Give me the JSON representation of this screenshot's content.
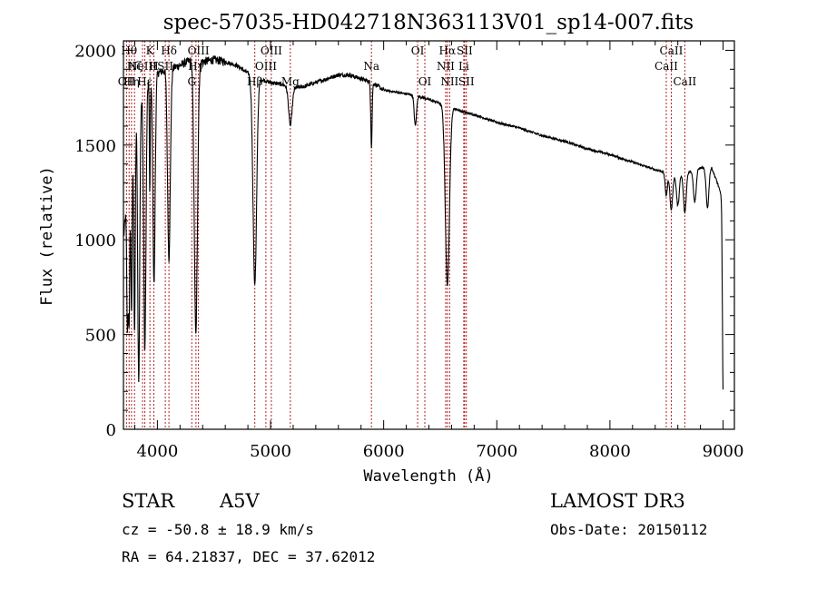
{
  "chart_data": {
    "type": "line",
    "title": "spec-57035-HD042718N363113V01_sp14-007.fits",
    "xlabel": "Wavelength (Å)",
    "ylabel": "Flux (relative)",
    "xlim": [
      3700,
      9100
    ],
    "ylim": [
      0,
      2050
    ],
    "x_ticks": [
      4000,
      5000,
      6000,
      7000,
      8000,
      9000
    ],
    "x_tick_labels": [
      "4000",
      "5000",
      "6000",
      "7000",
      "8000",
      "9000"
    ],
    "y_ticks": [
      0,
      500,
      1000,
      1500,
      2000
    ],
    "y_tick_labels": [
      "0",
      "500",
      "1000",
      "1500",
      "2000"
    ],
    "continuum": [
      [
        3700,
        1000
      ],
      [
        3800,
        1720
      ],
      [
        3900,
        1830
      ],
      [
        4000,
        1880
      ],
      [
        4100,
        1900
      ],
      [
        4200,
        1920
      ],
      [
        4300,
        1950
      ],
      [
        4400,
        1940
      ],
      [
        4500,
        1950
      ],
      [
        4600,
        1940
      ],
      [
        4700,
        1920
      ],
      [
        4800,
        1880
      ],
      [
        4900,
        1850
      ],
      [
        5000,
        1830
      ],
      [
        5100,
        1820
      ],
      [
        5200,
        1800
      ],
      [
        5300,
        1810
      ],
      [
        5400,
        1830
      ],
      [
        5500,
        1850
      ],
      [
        5600,
        1870
      ],
      [
        5700,
        1870
      ],
      [
        5800,
        1850
      ],
      [
        5900,
        1830
      ],
      [
        6000,
        1790
      ],
      [
        6100,
        1780
      ],
      [
        6200,
        1770
      ],
      [
        6300,
        1760
      ],
      [
        6400,
        1740
      ],
      [
        6500,
        1720
      ],
      [
        6600,
        1700
      ],
      [
        6700,
        1675
      ],
      [
        6800,
        1660
      ],
      [
        6900,
        1640
      ],
      [
        7000,
        1620
      ],
      [
        7200,
        1590
      ],
      [
        7400,
        1550
      ],
      [
        7600,
        1520
      ],
      [
        7800,
        1480
      ],
      [
        8000,
        1450
      ],
      [
        8200,
        1410
      ],
      [
        8400,
        1370
      ],
      [
        8600,
        1340
      ],
      [
        8800,
        1380
      ],
      [
        8900,
        1380
      ],
      [
        8950,
        1300
      ],
      [
        9000,
        1200
      ]
    ],
    "absorption_features": [
      {
        "center": 3735,
        "depth": 700,
        "width": 6
      },
      {
        "center": 3750,
        "depth": 800,
        "width": 6
      },
      {
        "center": 3771,
        "depth": 900,
        "width": 6
      },
      {
        "center": 3798,
        "depth": 1200,
        "width": 7
      },
      {
        "center": 3835,
        "depth": 1500,
        "width": 9
      },
      {
        "center": 3889,
        "depth": 1400,
        "width": 10
      },
      {
        "center": 3933,
        "depth": 600,
        "width": 4
      },
      {
        "center": 3970,
        "depth": 1100,
        "width": 10
      },
      {
        "center": 4102,
        "depth": 1000,
        "width": 12
      },
      {
        "center": 4340,
        "depth": 1450,
        "width": 14
      },
      {
        "center": 4861,
        "depth": 1100,
        "width": 16
      },
      {
        "center": 5175,
        "depth": 200,
        "width": 15
      },
      {
        "center": 5892,
        "depth": 340,
        "width": 6
      },
      {
        "center": 6280,
        "depth": 160,
        "width": 10
      },
      {
        "center": 6563,
        "depth": 950,
        "width": 18
      },
      {
        "center": 8498,
        "depth": 120,
        "width": 10
      },
      {
        "center": 8542,
        "depth": 190,
        "width": 12
      },
      {
        "center": 8600,
        "depth": 160,
        "width": 12
      },
      {
        "center": 8662,
        "depth": 210,
        "width": 12
      },
      {
        "center": 8750,
        "depth": 170,
        "width": 12
      },
      {
        "center": 8862,
        "depth": 210,
        "width": 12
      },
      {
        "center": 9000,
        "depth": 1000,
        "width": 6
      }
    ],
    "reference_lines": [
      {
        "wavelength": 3727,
        "label": "OII",
        "row": 3
      },
      {
        "wavelength": 3750,
        "label": "Hθ",
        "row": 1
      },
      {
        "wavelength": 3771,
        "label": "Hη",
        "row": 3
      },
      {
        "wavelength": 3798,
        "label": "Hζ",
        "row": 2
      },
      {
        "wavelength": 3869,
        "label": "NeIII",
        "row": 2
      },
      {
        "wavelength": 3889,
        "label": "Hε",
        "row": 3
      },
      {
        "wavelength": 3934,
        "label": "K",
        "row": 1
      },
      {
        "wavelength": 3969,
        "label": "H",
        "row": 2
      },
      {
        "wavelength": 4070,
        "label": "SII",
        "row": 2
      },
      {
        "wavelength": 4102,
        "label": "Hδ",
        "row": 1
      },
      {
        "wavelength": 4304,
        "label": "G",
        "row": 3
      },
      {
        "wavelength": 4341,
        "label": "Hγ",
        "row": 2
      },
      {
        "wavelength": 4363,
        "label": "OIII",
        "row": 1
      },
      {
        "wavelength": 4861,
        "label": "Hβ",
        "row": 3
      },
      {
        "wavelength": 4959,
        "label": "OIII",
        "row": 2
      },
      {
        "wavelength": 5007,
        "label": "OIII",
        "row": 1
      },
      {
        "wavelength": 5175,
        "label": "Mg",
        "row": 3
      },
      {
        "wavelength": 5892,
        "label": "Na",
        "row": 2
      },
      {
        "wavelength": 6300,
        "label": "OI",
        "row": 1
      },
      {
        "wavelength": 6364,
        "label": "OI",
        "row": 3
      },
      {
        "wavelength": 6548,
        "label": "NII",
        "row": 2
      },
      {
        "wavelength": 6563,
        "label": "Hα",
        "row": 1
      },
      {
        "wavelength": 6583,
        "label": "NII",
        "row": 3
      },
      {
        "wavelength": 6708,
        "label": "Li",
        "row": 2
      },
      {
        "wavelength": 6716,
        "label": "SII",
        "row": 1
      },
      {
        "wavelength": 6731,
        "label": "SII",
        "row": 3
      },
      {
        "wavelength": 8498,
        "label": "CaII",
        "row": 2
      },
      {
        "wavelength": 8542,
        "label": "CaII",
        "row": 1
      },
      {
        "wavelength": 8662,
        "label": "CaII",
        "row": 3
      }
    ]
  },
  "info": {
    "object_class": "STAR",
    "subclass": "A5V",
    "redshift": "cz = -50.8 ± 18.9 km/s",
    "coords": "RA =  64.21837, DEC =  37.62012",
    "survey": "LAMOST DR3",
    "obs_date": "Obs-Date: 20150112"
  },
  "colors": {
    "spectrum": "#000000",
    "reference_line": "#b22222",
    "axes": "#000000",
    "background": "#ffffff"
  }
}
